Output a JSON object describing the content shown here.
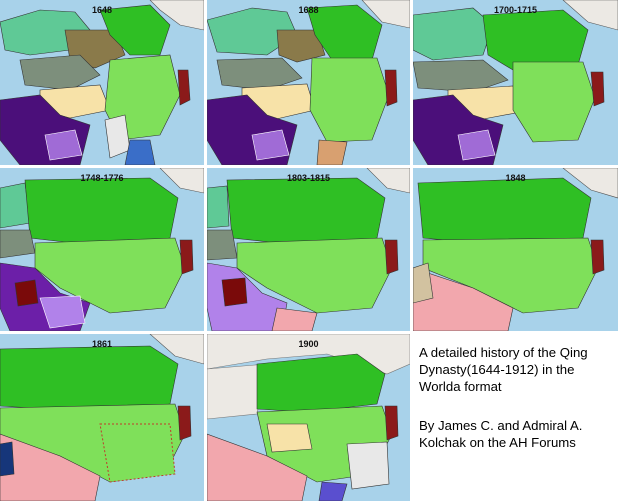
{
  "panels": [
    {
      "year": "1648"
    },
    {
      "year": "1688"
    },
    {
      "year": "1700-1715"
    },
    {
      "year": "1748-1776"
    },
    {
      "year": "1803-1815"
    },
    {
      "year": "1848"
    },
    {
      "year": "1861"
    },
    {
      "year": "1900"
    }
  ],
  "caption": {
    "title": "A detailed history of the Qing Dynasty(1644-1912) in the Worlda format",
    "credit": "By James C. and Admiral A. Kolchak on the AH Forums"
  },
  "colors": {
    "sea": "#a8d2ea",
    "qing_core": "#7fe05a",
    "qing_dependency": "#2fbf24",
    "korea": "#8b1a1a",
    "tibet": "#f7e2a8",
    "zunghar": "#5fc996",
    "russia": "#ece9e4",
    "mughal": "#4b0f7a",
    "british_india": "#f2a7ad",
    "french_indochina": "#e8e8e8"
  }
}
